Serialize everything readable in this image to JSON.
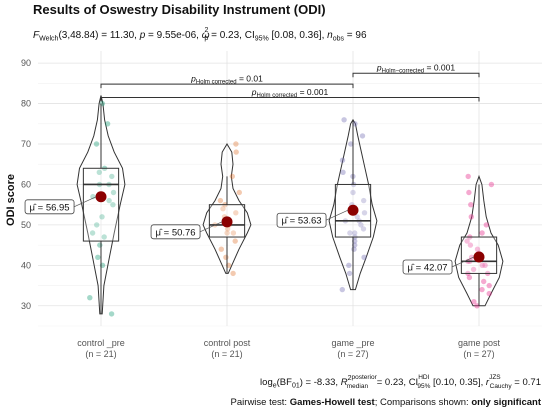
{
  "chart_data": {
    "type": "violin-box",
    "title": "Results of Oswestry Disability Instrument (ODI)",
    "subtitle": {
      "F_prefix": "F",
      "F_sub": "Welch",
      "F_rest": "(3,48.84) = 11.30, ",
      "p_label": "p",
      "p_rest": " = 9.55e-06, ",
      "omega": "ω",
      "omega_sub": "p",
      "omega_sup": "2",
      "omega_rest": " = 0.23, CI",
      "ci_sub": "95%",
      "ci_rest": " [0.08, 0.36], ",
      "n_label": "n",
      "n_sub": "obs",
      "n_rest": " = 96"
    },
    "ylabel": "ODI score",
    "ylim": [
      25,
      93
    ],
    "yticks": [
      30,
      40,
      50,
      60,
      70,
      80,
      90
    ],
    "groups": [
      {
        "label": "control _pre",
        "n_label": "(n = 21)",
        "color": "#1b9e77",
        "mean": 56.95,
        "mean_label": "μ̂ = 56.95",
        "box": {
          "q1": 46,
          "median": 60,
          "q3": 64,
          "wlo": 28,
          "whi": 80
        },
        "violin": {
          "min": 28,
          "max": 82,
          "profile": [
            [
              28,
              0.05
            ],
            [
              35,
              0.12
            ],
            [
              42,
              0.35
            ],
            [
              48,
              0.55
            ],
            [
              55,
              0.8
            ],
            [
              60,
              1.0
            ],
            [
              64,
              0.9
            ],
            [
              68,
              0.55
            ],
            [
              72,
              0.3
            ],
            [
              76,
              0.15
            ],
            [
              80,
              0.08
            ],
            [
              82,
              0.0
            ]
          ]
        },
        "points": [
          28,
          32,
          40,
          42,
          45,
          47,
          48,
          50,
          52,
          55,
          56,
          57,
          58,
          60,
          60,
          62,
          63,
          64,
          70,
          75,
          80
        ]
      },
      {
        "label": "control post",
        "n_label": "(n = 21)",
        "color": "#e07b39",
        "mean": 50.76,
        "mean_label": "μ̂ = 50.76",
        "box": {
          "q1": 47,
          "median": 50,
          "q3": 55,
          "wlo": 38,
          "whi": 62
        },
        "violin": {
          "min": 38,
          "max": 70,
          "profile": [
            [
              38,
              0.05
            ],
            [
              40,
              0.2
            ],
            [
              44,
              0.5
            ],
            [
              48,
              0.85
            ],
            [
              50,
              1.0
            ],
            [
              53,
              0.85
            ],
            [
              56,
              0.5
            ],
            [
              59,
              0.25
            ],
            [
              62,
              0.18
            ],
            [
              65,
              0.25
            ],
            [
              68,
              0.2
            ],
            [
              70,
              0.0
            ]
          ]
        },
        "points": [
          38,
          40,
          42,
          44,
          46,
          48,
          48,
          49,
          50,
          50,
          50,
          51,
          52,
          53,
          54,
          55,
          56,
          58,
          62,
          68,
          70
        ]
      },
      {
        "label": "game _pre",
        "n_label": "(n = 27)",
        "color": "#7570b3",
        "mean": 53.63,
        "mean_label": "μ̂ = 53.63",
        "box": {
          "q1": 47,
          "median": 51,
          "q3": 60,
          "wlo": 34,
          "whi": 76
        },
        "violin": {
          "min": 34,
          "max": 76,
          "profile": [
            [
              34,
              0.1
            ],
            [
              38,
              0.3
            ],
            [
              42,
              0.55
            ],
            [
              47,
              0.85
            ],
            [
              51,
              1.0
            ],
            [
              55,
              0.8
            ],
            [
              60,
              0.65
            ],
            [
              64,
              0.5
            ],
            [
              68,
              0.35
            ],
            [
              72,
              0.2
            ],
            [
              75,
              0.1
            ],
            [
              76,
              0.0
            ]
          ]
        },
        "points": [
          34,
          38,
          40,
          42,
          44,
          45,
          46,
          47,
          48,
          48,
          49,
          50,
          51,
          51,
          52,
          53,
          55,
          56,
          58,
          60,
          62,
          63,
          66,
          70,
          72,
          75,
          76
        ]
      },
      {
        "label": "game post",
        "n_label": "(n = 27)",
        "color": "#e7298a",
        "mean": 42.07,
        "mean_label": "μ̂ = 42.07",
        "box": {
          "q1": 38,
          "median": 41,
          "q3": 47,
          "wlo": 30,
          "whi": 60
        },
        "violin": {
          "min": 30,
          "max": 62,
          "profile": [
            [
              30,
              0.25
            ],
            [
              33,
              0.5
            ],
            [
              37,
              0.85
            ],
            [
              41,
              1.0
            ],
            [
              45,
              0.8
            ],
            [
              48,
              0.5
            ],
            [
              52,
              0.3
            ],
            [
              56,
              0.2
            ],
            [
              60,
              0.12
            ],
            [
              62,
              0.0
            ]
          ]
        },
        "points": [
          30,
          31,
          33,
          34,
          35,
          36,
          37,
          38,
          38,
          39,
          40,
          40,
          41,
          41,
          42,
          43,
          44,
          45,
          46,
          47,
          48,
          50,
          52,
          55,
          58,
          60,
          62
        ]
      }
    ],
    "comparisons": [
      {
        "from": 2,
        "to": 3,
        "y": 87.5,
        "prefix": "p",
        "sub": "Holm−corrected",
        "rest": " = 0.001"
      },
      {
        "from": 0,
        "to": 2,
        "y": 84.8,
        "prefix": "p",
        "sub": "Holm  corrected",
        "rest": " = 0.01"
      },
      {
        "from": 0,
        "to": 3,
        "y": 81.5,
        "prefix": "p",
        "sub": "Holm  corrected",
        "rest": " = 0.001"
      }
    ],
    "caption1": {
      "log_a": "log",
      "log_sub": "e",
      "log_b": "(BF",
      "bf_sub": "01",
      "log_c": ") = -8.33, ",
      "r2": "R",
      "r2_sup": "2",
      "post_sup": "posterior",
      "post_sub": "median",
      "r2_rest": " = 0.23, CI",
      "hdi_sup": "HDI",
      "hdi_sub": "95%",
      "ci_rest": " [0.10, 0.35], ",
      "r": "r",
      "jzs_sup": "JZS",
      "cauchy_sub": "Cauchy",
      "r_rest": " = 0.71"
    },
    "caption2": {
      "a": "Pairwise test: ",
      "b": "Games-Howell test",
      "c": "; Comparisons shown: ",
      "d": "only significant"
    },
    "grid": true
  }
}
